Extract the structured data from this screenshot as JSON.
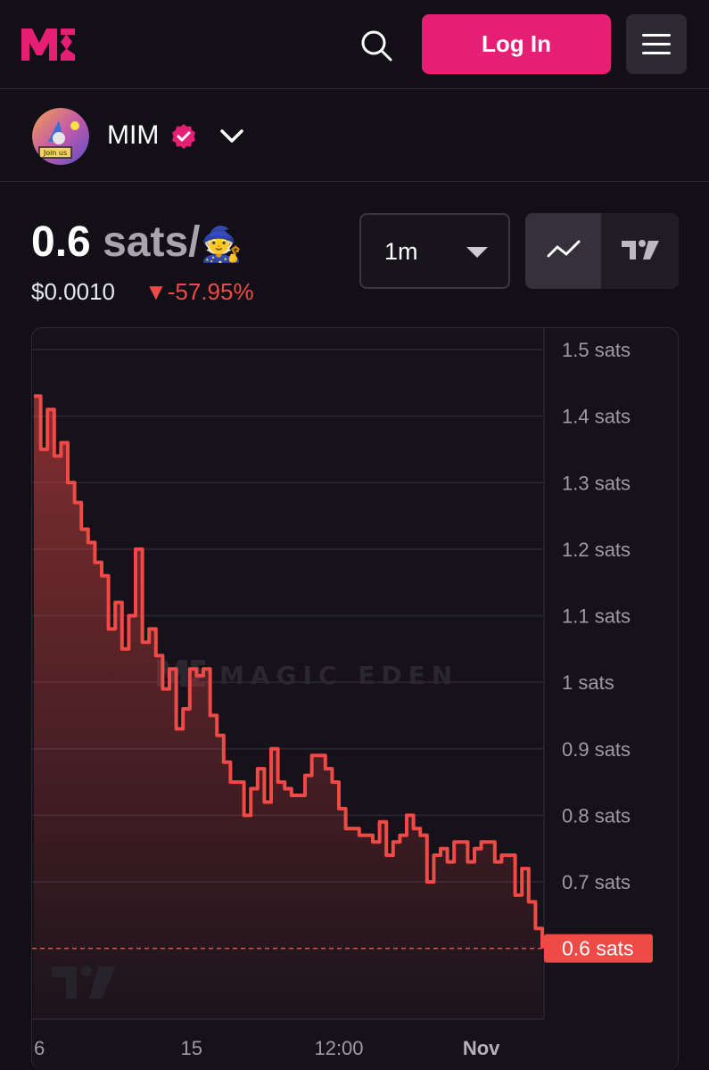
{
  "header": {
    "logo_icon": "magic-eden-logo-icon",
    "search_icon": "search-icon",
    "login_label": "Log In",
    "menu_icon": "hamburger-menu-icon",
    "accent_color": "#e71f74"
  },
  "collection": {
    "name": "MIM",
    "verified_icon": "verified-badge-icon",
    "dropdown_icon": "chevron-down-icon"
  },
  "price": {
    "value": "0.6",
    "unit": "sats/",
    "emoji": "🧙",
    "usd": "$0.0010",
    "change": "-57.95%",
    "change_color": "#ef4a45"
  },
  "controls": {
    "interval": "1m",
    "line_chart_icon": "line-chart-icon",
    "tradingview_icon": "tradingview-icon"
  },
  "chart_data": {
    "type": "area",
    "watermark": "MAGIC EDEN",
    "current_price_label": "0.6 sats",
    "y_ticks": [
      "1.5 sats",
      "1.4 sats",
      "1.3 sats",
      "1.2 sats",
      "1.1 sats",
      "1 sats",
      "0.9 sats",
      "0.8 sats",
      "0.7 sats"
    ],
    "y_tick_values": [
      1.5,
      1.4,
      1.3,
      1.2,
      1.1,
      1.0,
      0.9,
      0.8,
      0.7
    ],
    "x_ticks": [
      "6",
      "15",
      "12:00",
      "Nov"
    ],
    "x_tick_positions": [
      0.0,
      0.31,
      0.6,
      0.88
    ],
    "ylim": [
      0.56,
      1.52
    ],
    "series_color": "#ef4a45",
    "series": [
      {
        "values": [
          1.43,
          1.35,
          1.41,
          1.34,
          1.36,
          1.3,
          1.27,
          1.23,
          1.21,
          1.18,
          1.16,
          1.08,
          1.12,
          1.05,
          1.1,
          1.2,
          1.06,
          1.08,
          1.04,
          0.99,
          1.02,
          0.93,
          0.96,
          1.02,
          1.01,
          1.02,
          0.95,
          0.92,
          0.88,
          0.85,
          0.85,
          0.8,
          0.84,
          0.87,
          0.82,
          0.9,
          0.85,
          0.84,
          0.83,
          0.83,
          0.86,
          0.89,
          0.89,
          0.87,
          0.85,
          0.81,
          0.78,
          0.78,
          0.77,
          0.77,
          0.76,
          0.79,
          0.74,
          0.76,
          0.77,
          0.8,
          0.78,
          0.77,
          0.7,
          0.74,
          0.75,
          0.73,
          0.76,
          0.76,
          0.73,
          0.75,
          0.76,
          0.76,
          0.73,
          0.74,
          0.74,
          0.68,
          0.72,
          0.67,
          0.63,
          0.6
        ]
      }
    ]
  }
}
